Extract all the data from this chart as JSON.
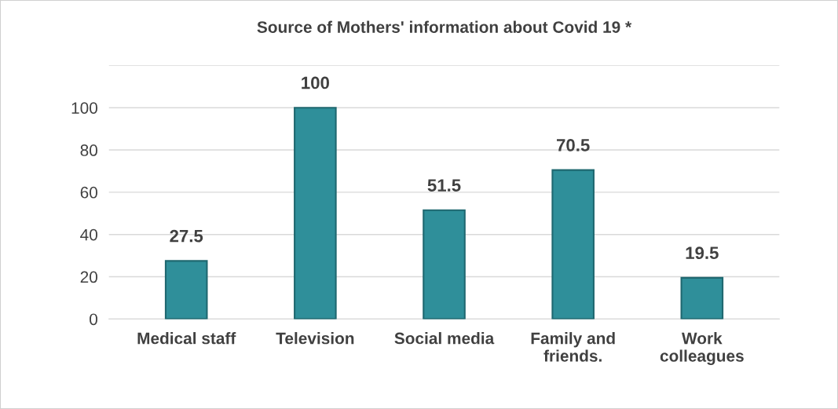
{
  "chart_data": {
    "type": "bar",
    "title": "Source of Mothers' information about Covid 19 *",
    "categories": [
      "Medical staff",
      "Television",
      "Social media",
      "Family and\nfriends.",
      "Work\ncolleagues"
    ],
    "values": [
      27.5,
      100,
      51.5,
      70.5,
      19.5
    ],
    "color": "#2f8f9a",
    "ylim": [
      0,
      120
    ],
    "yticks": [
      0,
      20,
      40,
      60,
      80,
      100,
      {
        "value": 120,
        "label": null
      }
    ],
    "grid": "y",
    "data_labels": true
  }
}
